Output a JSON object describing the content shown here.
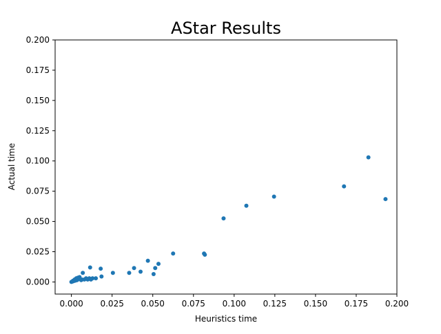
{
  "chart_data": {
    "type": "scatter",
    "title": "AStar Results",
    "xlabel": "Heuristics time",
    "ylabel": "Actual time",
    "xlim": [
      -0.01,
      0.2
    ],
    "ylim": [
      -0.01,
      0.2
    ],
    "xticks": [
      0.0,
      0.025,
      0.05,
      0.075,
      0.1,
      0.125,
      0.15,
      0.175,
      0.2
    ],
    "yticks": [
      0.0,
      0.025,
      0.05,
      0.075,
      0.1,
      0.125,
      0.15,
      0.175,
      0.2
    ],
    "xtick_labels": [
      "0.000",
      "0.025",
      "0.050",
      "0.075",
      "0.100",
      "0.125",
      "0.150",
      "0.175",
      "0.200"
    ],
    "ytick_labels": [
      "0.000",
      "0.025",
      "0.050",
      "0.075",
      "0.100",
      "0.125",
      "0.150",
      "0.175",
      "0.200"
    ],
    "grid": false,
    "legend": false,
    "marker_color": "#1f77b4",
    "series": [
      {
        "x": [
          0.0,
          0.0005,
          0.001,
          0.0015,
          0.002,
          0.0025,
          0.003,
          0.0035,
          0.004,
          0.0045,
          0.005,
          0.001,
          0.002,
          0.003,
          0.0035,
          0.004,
          0.005,
          0.006,
          0.007,
          0.0065,
          0.008,
          0.009,
          0.01,
          0.011,
          0.012,
          0.013,
          0.0115,
          0.015,
          0.018,
          0.0185,
          0.0255,
          0.0355,
          0.0385,
          0.0425,
          0.047,
          0.0505,
          0.0515,
          0.0535,
          0.0625,
          0.0815,
          0.082,
          0.0935,
          0.1075,
          0.1245,
          0.1675,
          0.1825,
          0.193
        ],
        "y": [
          0.0,
          0.0003,
          0.0005,
          0.0008,
          0.001,
          0.0012,
          0.0015,
          0.002,
          0.0025,
          0.003,
          0.004,
          0.001,
          0.002,
          0.003,
          0.0015,
          0.0035,
          0.0025,
          0.0015,
          0.0075,
          0.002,
          0.002,
          0.003,
          0.002,
          0.003,
          0.002,
          0.003,
          0.012,
          0.003,
          0.011,
          0.0045,
          0.0075,
          0.0075,
          0.0115,
          0.0085,
          0.0175,
          0.0065,
          0.0115,
          0.015,
          0.0235,
          0.0235,
          0.0225,
          0.0525,
          0.063,
          0.0705,
          0.079,
          0.103,
          0.0685
        ]
      }
    ]
  }
}
